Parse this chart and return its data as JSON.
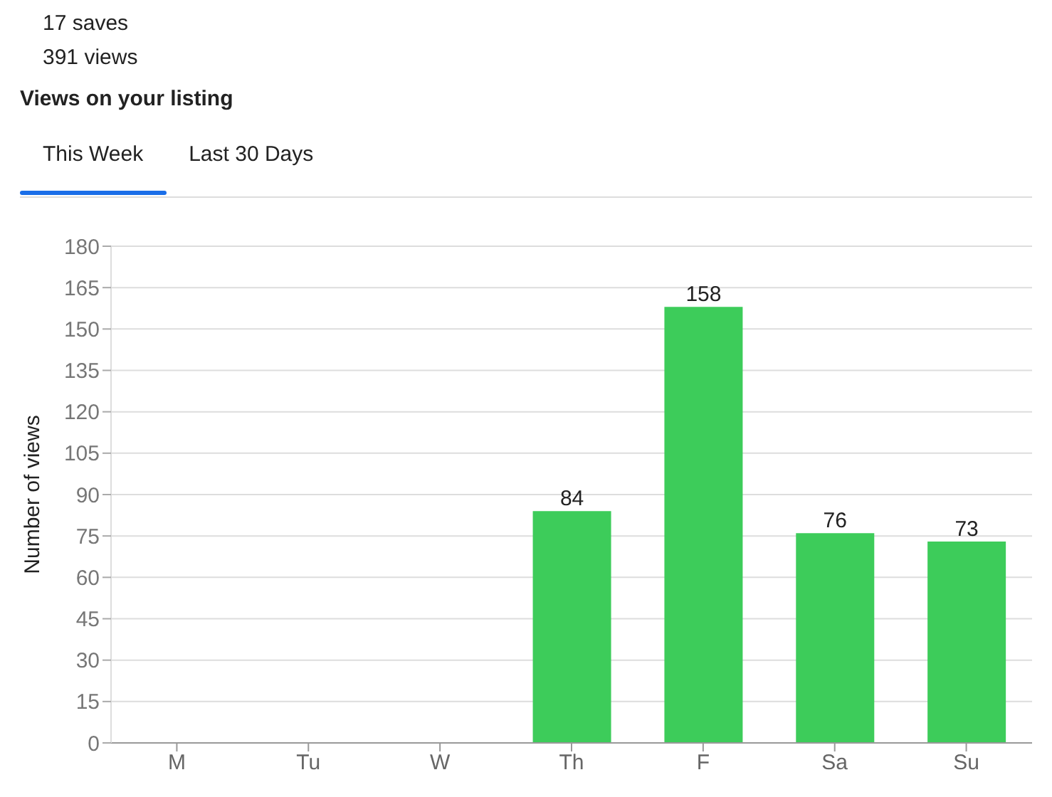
{
  "chart_data": {
    "type": "bar",
    "title": "Views on your listing",
    "annotations": [
      "17 saves",
      "391 views",
      "This Week",
      "Last 30 Days"
    ],
    "ylabel": "Number of views",
    "categories": [
      "M",
      "Tu",
      "W",
      "Th",
      "F",
      "Sa",
      "Su"
    ],
    "values": [
      0,
      0,
      0,
      84,
      158,
      76,
      73
    ],
    "value_labels": [
      null,
      null,
      null,
      "84",
      "158",
      "76",
      "73"
    ],
    "color": "#3dcc5a",
    "ylim": [
      0,
      180
    ],
    "yticks": [
      0,
      15,
      30,
      45,
      60,
      75,
      90,
      105,
      120,
      135,
      150,
      165,
      180
    ],
    "grid": "y"
  }
}
